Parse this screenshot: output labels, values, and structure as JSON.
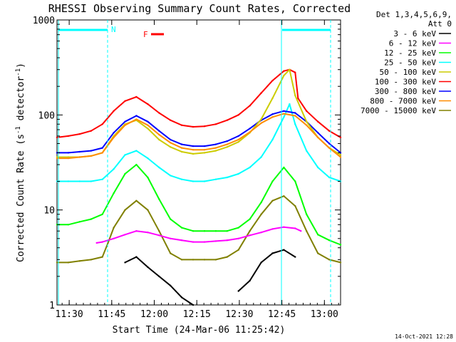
{
  "chart_data": {
    "type": "line",
    "title": "RHESSI Observing Summary Count Rates, Corrected",
    "xlabel": "Start Time (24-Mar-06 11:25:42)",
    "ylabel_main": "Corrected Count Rate (s",
    "ylabel_sup1": "-1",
    "ylabel_mid": " detector",
    "ylabel_sup2": "-1",
    "ylabel_end": ")",
    "yscale": "log",
    "ylim": [
      1,
      1000
    ],
    "xlim_minutes": [
      0,
      100
    ],
    "x_unit": "minutes since 11:25:42",
    "x_ticks": [
      {
        "label": "11:30",
        "minute": 4.3
      },
      {
        "label": "11:45",
        "minute": 19.3
      },
      {
        "label": "12:00",
        "minute": 34.3
      },
      {
        "label": "12:15",
        "minute": 49.3
      },
      {
        "label": "12:30",
        "minute": 64.3
      },
      {
        "label": "12:45",
        "minute": 79.3
      },
      {
        "label": "13:00",
        "minute": 94.3
      }
    ],
    "y_ticks": [
      {
        "label": "1",
        "value": 1
      },
      {
        "label": "10",
        "value": 10
      },
      {
        "label": "100",
        "value": 100
      },
      {
        "label": "1000",
        "value": 1000
      }
    ],
    "legend_header": [
      "Det 1,3,4,5,6,9,",
      "Att 0"
    ],
    "flag_n": "N",
    "flag_f": "F",
    "timestamp": "14-Oct-2021 12:28",
    "series": [
      {
        "name": "3 - 6 keV",
        "color": "#000000",
        "x": [
          0,
          14,
          17,
          20,
          24,
          28,
          32,
          36,
          40,
          44,
          48,
          52,
          56,
          60,
          64,
          68,
          72,
          76,
          80,
          84,
          88,
          92,
          96,
          100
        ],
        "y": [
          null,
          null,
          null,
          null,
          2.8,
          3.2,
          2.5,
          2.0,
          1.6,
          1.2,
          1.0,
          null,
          null,
          null,
          1.4,
          1.8,
          2.8,
          3.5,
          3.8,
          3.2,
          null,
          null,
          null,
          null
        ]
      },
      {
        "name": "6 - 12 keV",
        "color": "#ff00ff",
        "x": [
          14,
          16,
          20,
          24,
          28,
          32,
          36,
          40,
          44,
          48,
          52,
          56,
          60,
          64,
          68,
          72,
          76,
          80,
          84,
          86
        ],
        "y": [
          4.5,
          4.6,
          5.0,
          5.5,
          6.0,
          5.8,
          5.4,
          5.0,
          4.8,
          4.6,
          4.6,
          4.7,
          4.8,
          5.0,
          5.4,
          5.8,
          6.3,
          6.6,
          6.4,
          6.0
        ]
      },
      {
        "name": "12 - 25 keV",
        "color": "#00ff00",
        "x": [
          0,
          4,
          8,
          12,
          16,
          20,
          24,
          28,
          32,
          36,
          40,
          44,
          48,
          52,
          56,
          60,
          64,
          68,
          72,
          76,
          80,
          84,
          88,
          92,
          96,
          100
        ],
        "y": [
          7,
          7,
          7.5,
          8,
          9,
          15,
          24,
          30,
          22,
          13,
          8,
          6.5,
          6,
          6,
          6,
          6,
          6.5,
          8,
          12,
          20,
          28,
          20,
          9,
          5.5,
          4.8,
          4.3
        ]
      },
      {
        "name": "25 - 50 keV",
        "color": "#00ffff",
        "x": [
          0,
          4,
          8,
          12,
          16,
          20,
          24,
          28,
          32,
          36,
          40,
          44,
          48,
          52,
          56,
          60,
          64,
          68,
          72,
          76,
          80,
          82,
          84,
          88,
          92,
          96,
          100
        ],
        "y": [
          20,
          20,
          20,
          20,
          21,
          27,
          38,
          42,
          35,
          28,
          23,
          21,
          20,
          20,
          21,
          22,
          24,
          28,
          36,
          55,
          95,
          130,
          80,
          42,
          28,
          22,
          20
        ]
      },
      {
        "name": "50 - 100 keV",
        "color": "#cccc00",
        "x": [
          0,
          4,
          8,
          12,
          16,
          20,
          24,
          28,
          32,
          36,
          40,
          44,
          48,
          52,
          56,
          60,
          64,
          68,
          72,
          76,
          80,
          82,
          84,
          88,
          92,
          96,
          100
        ],
        "y": [
          36,
          36,
          36,
          37,
          40,
          60,
          80,
          88,
          72,
          55,
          46,
          41,
          39,
          40,
          42,
          46,
          52,
          65,
          90,
          150,
          260,
          300,
          160,
          85,
          58,
          45,
          38
        ]
      },
      {
        "name": "100 - 300 keV",
        "color": "#ff0000",
        "x": [
          0,
          4,
          8,
          12,
          16,
          20,
          24,
          28,
          32,
          36,
          40,
          44,
          48,
          52,
          56,
          60,
          64,
          68,
          72,
          76,
          80,
          82,
          84,
          85,
          88,
          92,
          96,
          100
        ],
        "y": [
          58,
          60,
          63,
          68,
          80,
          110,
          140,
          155,
          130,
          105,
          88,
          78,
          75,
          76,
          80,
          88,
          100,
          125,
          170,
          230,
          290,
          300,
          280,
          150,
          110,
          85,
          68,
          58
        ]
      },
      {
        "name": "300 - 800 keV",
        "color": "#0000ff",
        "x": [
          0,
          4,
          8,
          12,
          16,
          20,
          24,
          28,
          32,
          36,
          40,
          44,
          48,
          52,
          56,
          60,
          64,
          68,
          72,
          76,
          80,
          84,
          88,
          92,
          96,
          100
        ],
        "y": [
          40,
          40,
          41,
          42,
          45,
          65,
          85,
          98,
          85,
          68,
          55,
          49,
          47,
          47,
          49,
          53,
          60,
          72,
          88,
          102,
          110,
          105,
          85,
          65,
          50,
          40
        ]
      },
      {
        "name": "800 - 7000 keV",
        "color": "#ff8c00",
        "x": [
          0,
          4,
          8,
          12,
          16,
          20,
          24,
          28,
          32,
          36,
          40,
          44,
          48,
          52,
          56,
          60,
          64,
          68,
          72,
          76,
          80,
          84,
          88,
          92,
          96,
          100
        ],
        "y": [
          35,
          35,
          36,
          37,
          40,
          58,
          78,
          90,
          78,
          62,
          51,
          45,
          43,
          43,
          45,
          49,
          55,
          66,
          82,
          95,
          103,
          98,
          78,
          58,
          45,
          36
        ]
      },
      {
        "name": "7000 - 15000 keV",
        "color": "#808000",
        "x": [
          0,
          4,
          8,
          12,
          16,
          18,
          20,
          24,
          28,
          32,
          36,
          40,
          44,
          48,
          52,
          56,
          60,
          64,
          68,
          72,
          76,
          80,
          84,
          88,
          92,
          96,
          100
        ],
        "y": [
          2.8,
          2.8,
          2.9,
          3.0,
          3.2,
          4.5,
          6.5,
          10,
          12.5,
          10,
          6,
          3.5,
          3.0,
          3.0,
          3.0,
          3.0,
          3.2,
          3.8,
          6,
          9,
          12.5,
          14,
          11,
          6,
          3.5,
          3.0,
          2.8
        ]
      }
    ]
  }
}
